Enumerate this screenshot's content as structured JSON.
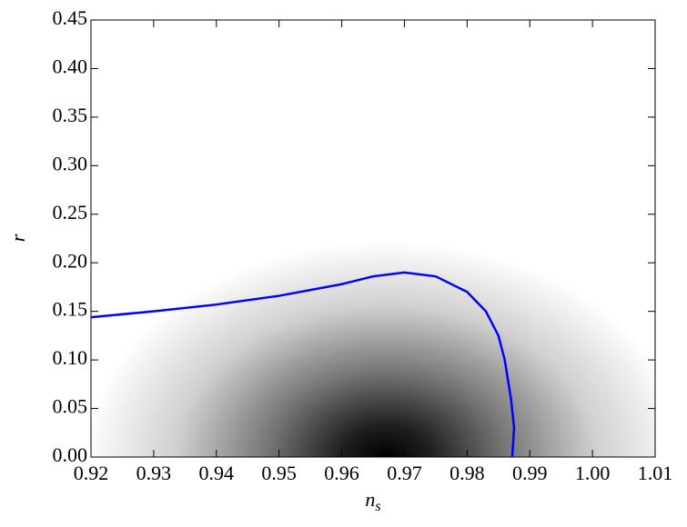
{
  "chart_data": {
    "type": "line",
    "xlabel": "n",
    "xlabel_subscript": "s",
    "ylabel": "r",
    "x": [
      0.92,
      0.93,
      0.94,
      0.95,
      0.96,
      0.965,
      0.97,
      0.975,
      0.98,
      0.983,
      0.985,
      0.986,
      0.987,
      0.9875,
      0.9872
    ],
    "series": [
      {
        "color": "#0000ff",
        "values": [
          0.144,
          0.15,
          0.157,
          0.166,
          0.178,
          0.186,
          0.19,
          0.186,
          0.17,
          0.15,
          0.125,
          0.1,
          0.06,
          0.03,
          0.0
        ]
      }
    ],
    "xlim": [
      0.92,
      1.01
    ],
    "xticks": [
      0.92,
      0.93,
      0.94,
      0.95,
      0.96,
      0.97,
      0.98,
      0.99,
      {
        "value": 1,
        "label": "1.00"
      },
      1.01
    ],
    "ylim": [
      0,
      0.45
    ],
    "yticks": [
      {
        "value": 0,
        "label": "0.00"
      },
      0.05,
      {
        "value": 0.1,
        "label": "0.10"
      },
      0.15,
      {
        "value": 0.2,
        "label": "0.20"
      },
      0.25,
      {
        "value": 0.3,
        "label": "0.30"
      },
      0.35,
      {
        "value": 0.4,
        "label": "0.40"
      },
      0.45
    ],
    "grid": false
  }
}
